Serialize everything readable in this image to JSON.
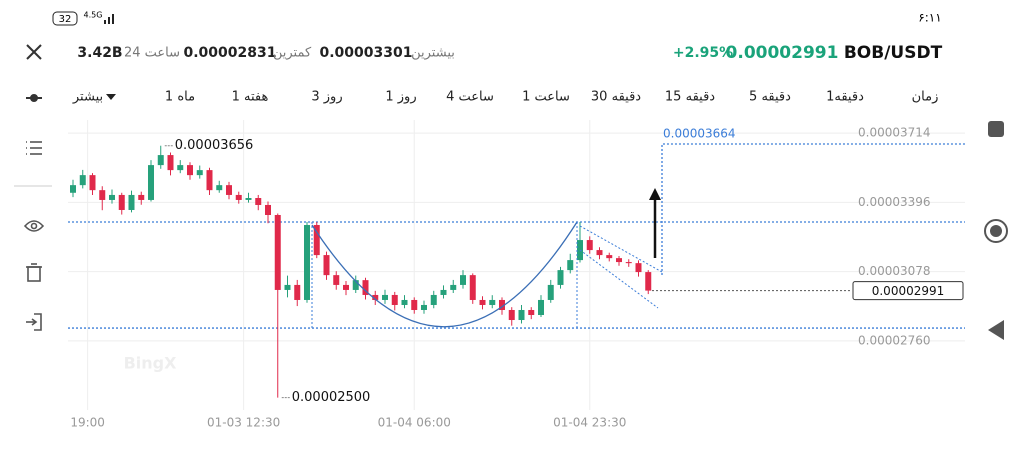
{
  "status_bar": {
    "time": "۶:۱۱",
    "battery": "32",
    "network": "4.5G"
  },
  "header": {
    "pair": "BOB/USDT",
    "price": "0.00002991",
    "change": "+2.95%",
    "high_label": "بیشترین",
    "high": "0.00003301",
    "low_label": "کمترین",
    "low": "0.00002831",
    "volume_label": "ساعت 24",
    "volume": "3.42B"
  },
  "timeframes": {
    "more": "بیشتر",
    "items": [
      "1 ماه",
      "1 هفته",
      "3 روز",
      "1 روز",
      "4 ساعت",
      "1 ساعت",
      "30 دقیقه",
      "15 دقیقه",
      "5 دقیقه",
      "1دقیقه",
      "زمان"
    ],
    "selected": "30 دقیقه"
  },
  "chart_data": {
    "type": "candlestick",
    "up_color": "#26a17b",
    "down_color": "#e0294a",
    "open": [
      3.44e-05,
      3.475e-05,
      3.521e-05,
      3.452e-05,
      3.407e-05,
      3.43e-05,
      3.361e-05,
      3.43e-05,
      3.407e-05,
      3.567e-05,
      3.613e-05,
      3.544e-05,
      3.567e-05,
      3.521e-05,
      3.544e-05,
      3.452e-05,
      3.475e-05,
      3.43e-05,
      3.407e-05,
      3.416e-05,
      3.384e-05,
      3.338e-05,
      2.994e-05,
      3.017e-05,
      2.948e-05,
      3.292e-05,
      3.154e-05,
      3.062e-05,
      3.017e-05,
      2.994e-05,
      3.039e-05,
      2.971e-05,
      2.948e-05,
      2.971e-05,
      2.925e-05,
      2.948e-05,
      2.902e-05,
      2.925e-05,
      2.971e-05,
      2.994e-05,
      3.017e-05,
      3.062e-05,
      2.948e-05,
      2.925e-05,
      2.948e-05,
      2.902e-05,
      2.856e-05,
      2.902e-05,
      2.879e-05,
      2.948e-05,
      3.017e-05,
      3.085e-05,
      3.131e-05,
      3.223e-05,
      3.177e-05,
      3.154e-05,
      3.14e-05,
      3.122e-05,
      3.117e-05,
      3.076e-05
    ],
    "high": [
      3.5e-05,
      3.545e-05,
      3.53e-05,
      3.47e-05,
      3.455e-05,
      3.44e-05,
      3.45e-05,
      3.445e-05,
      3.59e-05,
      3.656e-05,
      3.625e-05,
      3.59e-05,
      3.58e-05,
      3.565e-05,
      3.555e-05,
      3.495e-05,
      3.49e-05,
      3.445e-05,
      3.44e-05,
      3.43e-05,
      3.4e-05,
      3.345e-05,
      3.06e-05,
      3.04e-05,
      3.306e-05,
      3.306e-05,
      3.17e-05,
      3.08e-05,
      3.035e-05,
      3.06e-05,
      3.05e-05,
      2.99e-05,
      2.995e-05,
      2.985e-05,
      2.97e-05,
      2.96e-05,
      2.945e-05,
      2.99e-05,
      3.015e-05,
      3.04e-05,
      3.085e-05,
      3.07e-05,
      2.965e-05,
      2.97e-05,
      2.96e-05,
      2.915e-05,
      2.925e-05,
      2.915e-05,
      2.97e-05,
      3.04e-05,
      3.1e-05,
      3.16e-05,
      3.306e-05,
      3.24e-05,
      3.19e-05,
      3.165e-05,
      3.15e-05,
      3.135e-05,
      3.13e-05,
      3.085e-05
    ],
    "low": [
      3.42e-05,
      3.46e-05,
      3.43e-05,
      3.36e-05,
      3.39e-05,
      3.34e-05,
      3.35e-05,
      3.385e-05,
      3.4e-05,
      3.55e-05,
      3.52e-05,
      3.53e-05,
      3.5e-05,
      3.505e-05,
      3.43e-05,
      3.44e-05,
      3.41e-05,
      3.39e-05,
      3.395e-05,
      3.36e-05,
      3.3e-05,
      2.5e-05,
      2.96e-05,
      2.92e-05,
      2.935e-05,
      3.14e-05,
      3.04e-05,
      2.995e-05,
      2.97e-05,
      2.98e-05,
      2.95e-05,
      2.925e-05,
      2.93e-05,
      2.9e-05,
      2.91e-05,
      2.885e-05,
      2.885e-05,
      2.91e-05,
      2.955e-05,
      2.98e-05,
      3e-05,
      2.93e-05,
      2.905e-05,
      2.91e-05,
      2.88e-05,
      2.83e-05,
      2.84e-05,
      2.86e-05,
      2.87e-05,
      2.935e-05,
      3e-05,
      3.07e-05,
      3.12e-05,
      3.16e-05,
      3.135e-05,
      3.125e-05,
      3.105e-05,
      3.1e-05,
      3.055e-05,
      2.975e-05
    ],
    "close": [
      3.475e-05,
      3.521e-05,
      3.452e-05,
      3.407e-05,
      3.43e-05,
      3.361e-05,
      3.43e-05,
      3.407e-05,
      3.567e-05,
      3.613e-05,
      3.544e-05,
      3.567e-05,
      3.521e-05,
      3.544e-05,
      3.452e-05,
      3.475e-05,
      3.43e-05,
      3.407e-05,
      3.416e-05,
      3.384e-05,
      3.338e-05,
      2.994e-05,
      3.017e-05,
      2.948e-05,
      3.292e-05,
      3.154e-05,
      3.062e-05,
      3.017e-05,
      2.994e-05,
      3.039e-05,
      2.971e-05,
      2.948e-05,
      2.971e-05,
      2.925e-05,
      2.948e-05,
      2.902e-05,
      2.925e-05,
      2.971e-05,
      2.994e-05,
      3.017e-05,
      3.062e-05,
      2.948e-05,
      2.925e-05,
      2.948e-05,
      2.902e-05,
      2.856e-05,
      2.902e-05,
      2.879e-05,
      2.948e-05,
      3.017e-05,
      3.085e-05,
      3.131e-05,
      3.223e-05,
      3.177e-05,
      3.154e-05,
      3.14e-05,
      3.122e-05,
      3.117e-05,
      3.076e-05,
      2.991e-05
    ],
    "ylim": [
      2.443e-05,
      3.774e-05
    ],
    "yticks": [
      {
        "value": 3.714e-05,
        "label": "0.00003714"
      },
      {
        "value": 3.396e-05,
        "label": "0.00003396"
      },
      {
        "value": 3.078e-05,
        "label": "0.00003078"
      },
      {
        "value": 2.76e-05,
        "label": "0.00002760"
      }
    ],
    "xticks": [
      {
        "value": 1.5,
        "label": "19:00"
      },
      {
        "value": 17.5,
        "label": "01-03 12:30"
      },
      {
        "value": 35,
        "label": "01-04 06:00"
      },
      {
        "value": 53,
        "label": "01-04 23:30"
      }
    ],
    "levels": [
      3.306e-05,
      2.819e-05
    ],
    "target": {
      "value": 3.664e-05,
      "label": "0.00003664"
    },
    "last_price": {
      "value": 2.991e-05,
      "label": "0.00002991"
    },
    "max_marker": {
      "value": 3.656e-05,
      "label": "0.00003656"
    },
    "min_marker": {
      "value": 2.5e-05,
      "label": "0.00002500"
    },
    "watermark": "BingX"
  }
}
